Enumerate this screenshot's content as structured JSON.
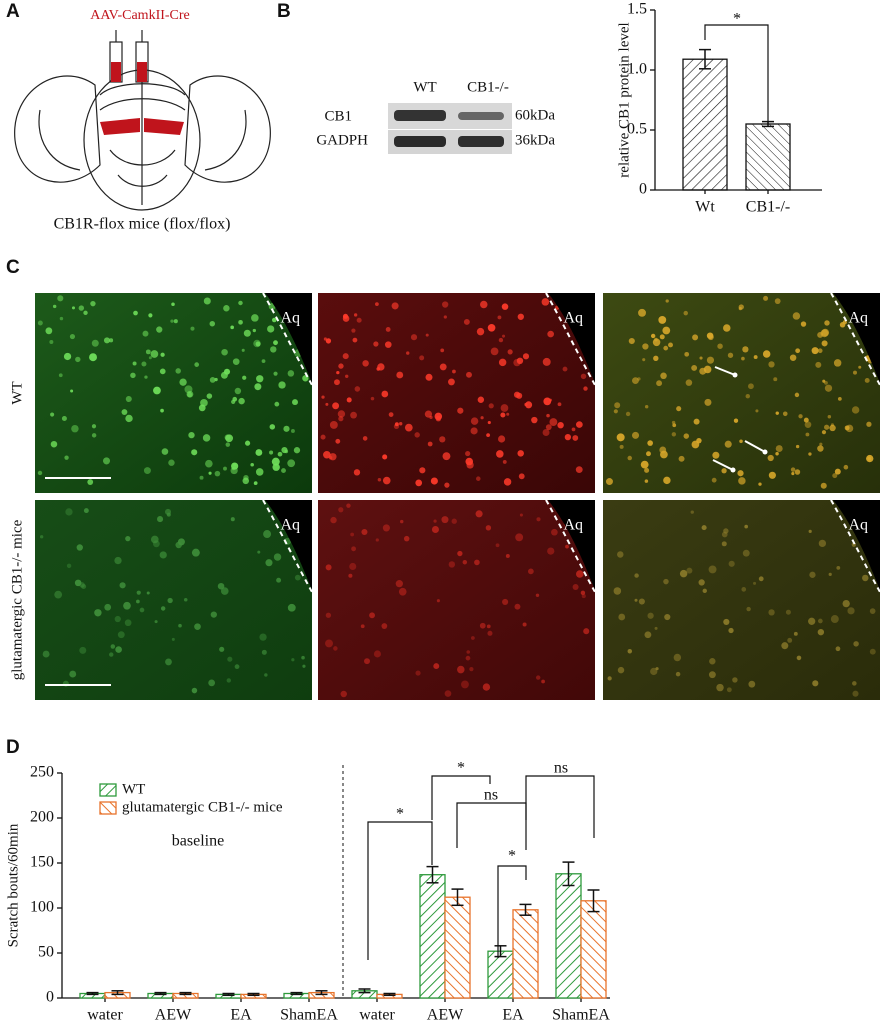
{
  "panel_labels": [
    "A",
    "B",
    "C",
    "D"
  ],
  "panel_a": {
    "virus": "AAV-CamkII-Cre",
    "caption": "CB1R-flox mice (flox/flox)"
  },
  "blot": {
    "lanes": [
      "WT",
      "CB1-/-"
    ],
    "rows": [
      "CB1",
      "GADPH"
    ],
    "sizes": [
      "60kDa",
      "36kDa"
    ]
  },
  "panel_c": {
    "rows": [
      "WT",
      "glutamatergic CB1-/- mice"
    ],
    "region": "Aq"
  },
  "chart_data": [
    {
      "type": "bar",
      "ylabel": "relative CB1 protein level",
      "categories": [
        "Wt",
        "CB1-/-"
      ],
      "values": [
        1.09,
        0.55
      ],
      "errors": [
        0.08,
        0.02
      ],
      "ylim": [
        0,
        1.5
      ],
      "yticks": [
        0,
        0.5,
        {
          "value": 1.0,
          "label": "1.0"
        },
        1.5
      ],
      "significance": [
        "*"
      ]
    },
    {
      "type": "bar",
      "ylabel": "Scratch bouts/60min",
      "categories": [
        "water",
        "AEW",
        "EA",
        "ShamEA",
        "water",
        "AEW",
        "EA",
        "ShamEA"
      ],
      "series": [
        {
          "name": "WT",
          "color": "#2e9a3c",
          "values": [
            5,
            5,
            4,
            5,
            8,
            137,
            52,
            138
          ],
          "errors": [
            1,
            1,
            1,
            1,
            2,
            9,
            6,
            13
          ]
        },
        {
          "name": "glutamatergic CB1-/- mice",
          "color": "#e8742c",
          "values": [
            6,
            5,
            4,
            6,
            4,
            112,
            98,
            108
          ],
          "errors": [
            2,
            1,
            1,
            2,
            1,
            9,
            6,
            12
          ]
        }
      ],
      "ylim": [
        0,
        250
      ],
      "yticks": [
        0,
        50,
        100,
        150,
        200,
        250
      ],
      "annotation": "baseline",
      "significance": [
        "*",
        "*",
        "ns",
        "*",
        "ns"
      ]
    }
  ]
}
